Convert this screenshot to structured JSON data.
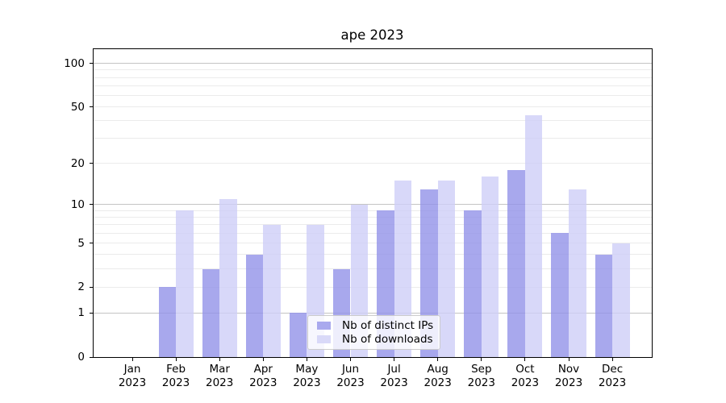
{
  "title": "ape 2023",
  "chart_data": {
    "type": "bar",
    "title": "ape 2023",
    "categories": [
      "Jan 2023",
      "Feb 2023",
      "Mar 2023",
      "Apr 2023",
      "May 2023",
      "Jun 2023",
      "Jul 2023",
      "Aug 2023",
      "Sep 2023",
      "Oct 2023",
      "Nov 2023",
      "Dec 2023"
    ],
    "x_tick_line1": [
      "Jan",
      "Feb",
      "Mar",
      "Apr",
      "May",
      "Jun",
      "Jul",
      "Aug",
      "Sep",
      "Oct",
      "Nov",
      "Dec"
    ],
    "x_tick_line2": "2023",
    "series": [
      {
        "name": "Nb of distinct IPs",
        "legend_color": "#a9a9ee",
        "fill": "rgba(146,146,232,0.8)",
        "values": [
          0,
          2,
          3,
          4,
          1,
          3,
          9,
          13,
          9,
          18,
          6,
          4
        ]
      },
      {
        "name": "Nb of downloads",
        "legend_color": "#d9d9f8",
        "fill": "rgba(206,206,247,0.8)",
        "values": [
          0,
          9,
          11,
          7,
          7,
          10,
          15,
          15,
          16,
          44,
          13,
          5
        ]
      }
    ],
    "yscale": "log1p",
    "ylim": [
      0,
      127
    ],
    "y_tick_labels": [
      100,
      50,
      20,
      10,
      5,
      2,
      1,
      0
    ],
    "major_gridlines": [
      1,
      10,
      100
    ],
    "minor_gridlines": [
      2,
      3,
      4,
      5,
      6,
      7,
      8,
      9,
      20,
      30,
      40,
      50,
      60,
      70,
      80,
      90
    ],
    "grid": true,
    "legend_position": "lower center",
    "colors": {
      "grid_major": "#c4c4c4",
      "grid_minor": "#ebebeb",
      "axis": "#000000",
      "background": "#ffffff"
    }
  }
}
